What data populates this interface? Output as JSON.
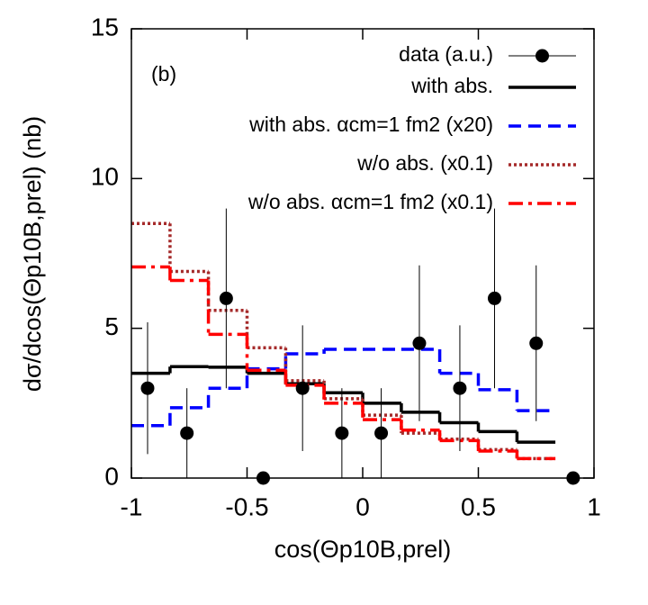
{
  "chart_data": {
    "type": "histogram",
    "xlabel": "cos(Θp10B,prel)",
    "ylabel": "dσ/dcos(Θp10B,prel) (nb)",
    "annotation": "(b)",
    "xlim": [
      -1,
      1
    ],
    "xticks": [
      -1,
      -0.5,
      0,
      0.5,
      1
    ],
    "ylim": [
      0,
      15
    ],
    "yticks": [
      0,
      5,
      10,
      15
    ],
    "legend": "upper right",
    "bins": [
      -1,
      -0.833,
      -0.667,
      -0.5,
      -0.333,
      -0.167,
      0,
      0.167,
      0.333,
      0.5,
      0.667,
      0.833
    ],
    "points": {
      "name": "data (a.u.)",
      "color": "#000000",
      "x": [
        -0.93,
        -0.76,
        -0.59,
        -0.43,
        -0.26,
        -0.09,
        0.08,
        0.245,
        0.42,
        0.57,
        0.75,
        0.91
      ],
      "values": [
        3,
        1.5,
        6,
        0,
        3,
        1.5,
        1.5,
        4.5,
        3,
        6,
        4.5,
        0
      ],
      "errors": [
        2.2,
        1.5,
        3,
        0,
        2.1,
        1.5,
        1.5,
        2.6,
        2.1,
        3,
        2.6,
        0
      ]
    },
    "series": [
      {
        "name": "with abs.",
        "color": "#000000",
        "dash": "solid",
        "values": [
          3.5,
          3.72,
          3.7,
          3.5,
          3.15,
          2.85,
          2.5,
          2.2,
          1.85,
          1.55,
          1.2
        ]
      },
      {
        "name": "with abs. αcm=1 fm2 (x20)",
        "color": "#0000ff",
        "dash": "dashed",
        "values": [
          1.75,
          2.35,
          3.0,
          3.65,
          4.15,
          4.3,
          4.3,
          4.3,
          3.5,
          2.95,
          2.25
        ]
      },
      {
        "name": "w/o abs. (x0.1)",
        "color": "#a52a2a",
        "dash": "dotted",
        "values": [
          8.5,
          6.9,
          5.6,
          4.35,
          3.25,
          2.65,
          2.1,
          1.5,
          1.3,
          0.95,
          0.65
        ]
      },
      {
        "name": "w/o abs. αcm=1 fm2 (x0.1)",
        "color": "#ff0000",
        "dash": "dashdot",
        "values": [
          7.05,
          6.6,
          4.8,
          3.6,
          3.1,
          2.5,
          1.95,
          1.6,
          1.25,
          0.9,
          0.65
        ]
      }
    ]
  }
}
